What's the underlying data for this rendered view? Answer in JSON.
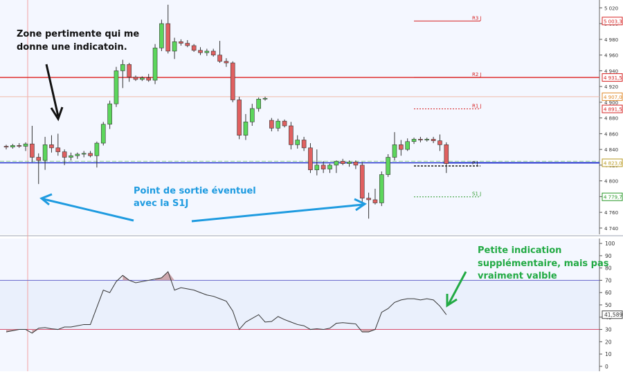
{
  "chart_data": [
    {
      "type": "candlestick",
      "y_axis": {
        "range": [
          4732,
          5030
        ],
        "ticks": [
          "5 020",
          "5 000",
          "4 980",
          "4 960",
          "4 940",
          "4 920",
          "4 900",
          "4 880",
          "4 860",
          "4 840",
          "4 820",
          "4 800",
          "4 780",
          "4 760",
          "4 740"
        ]
      },
      "candles": [
        {
          "o": 4844,
          "h": 4846,
          "l": 4840,
          "c": 4843
        },
        {
          "o": 4843,
          "h": 4847,
          "l": 4841,
          "c": 4845
        },
        {
          "o": 4845,
          "h": 4848,
          "l": 4842,
          "c": 4844
        },
        {
          "o": 4844,
          "h": 4849,
          "l": 4838,
          "c": 4847
        },
        {
          "o": 4847,
          "h": 4870,
          "l": 4824,
          "c": 4830
        },
        {
          "o": 4830,
          "h": 4835,
          "l": 4796,
          "c": 4826
        },
        {
          "o": 4826,
          "h": 4856,
          "l": 4814,
          "c": 4846
        },
        {
          "o": 4846,
          "h": 4858,
          "l": 4836,
          "c": 4842
        },
        {
          "o": 4842,
          "h": 4860,
          "l": 4832,
          "c": 4837
        },
        {
          "o": 4837,
          "h": 4840,
          "l": 4820,
          "c": 4830
        },
        {
          "o": 4830,
          "h": 4836,
          "l": 4826,
          "c": 4832
        },
        {
          "o": 4832,
          "h": 4836,
          "l": 4828,
          "c": 4834
        },
        {
          "o": 4834,
          "h": 4838,
          "l": 4830,
          "c": 4835
        },
        {
          "o": 4835,
          "h": 4838,
          "l": 4830,
          "c": 4832
        },
        {
          "o": 4832,
          "h": 4850,
          "l": 4817,
          "c": 4848
        },
        {
          "o": 4848,
          "h": 4875,
          "l": 4845,
          "c": 4872
        },
        {
          "o": 4872,
          "h": 4902,
          "l": 4866,
          "c": 4898
        },
        {
          "o": 4898,
          "h": 4945,
          "l": 4894,
          "c": 4940
        },
        {
          "o": 4940,
          "h": 4954,
          "l": 4918,
          "c": 4948
        },
        {
          "o": 4948,
          "h": 4950,
          "l": 4926,
          "c": 4932
        },
        {
          "o": 4932,
          "h": 4934,
          "l": 4927,
          "c": 4929
        },
        {
          "o": 4929,
          "h": 4933,
          "l": 4927,
          "c": 4931
        },
        {
          "o": 4931,
          "h": 4936,
          "l": 4926,
          "c": 4928
        },
        {
          "o": 4928,
          "h": 4974,
          "l": 4923,
          "c": 4969
        },
        {
          "o": 4969,
          "h": 5005,
          "l": 4965,
          "c": 5000
        },
        {
          "o": 5000,
          "h": 5024,
          "l": 4962,
          "c": 4965
        },
        {
          "o": 4965,
          "h": 4982,
          "l": 4955,
          "c": 4977
        },
        {
          "o": 4977,
          "h": 4980,
          "l": 4972,
          "c": 4975
        },
        {
          "o": 4975,
          "h": 4979,
          "l": 4970,
          "c": 4972
        },
        {
          "o": 4972,
          "h": 4974,
          "l": 4964,
          "c": 4966
        },
        {
          "o": 4966,
          "h": 4970,
          "l": 4960,
          "c": 4963
        },
        {
          "o": 4963,
          "h": 4968,
          "l": 4959,
          "c": 4965
        },
        {
          "o": 4965,
          "h": 4968,
          "l": 4958,
          "c": 4960
        },
        {
          "o": 4960,
          "h": 4978,
          "l": 4950,
          "c": 4952
        },
        {
          "o": 4952,
          "h": 4956,
          "l": 4945,
          "c": 4950
        },
        {
          "o": 4950,
          "h": 4952,
          "l": 4900,
          "c": 4903
        },
        {
          "o": 4903,
          "h": 4907,
          "l": 4853,
          "c": 4858
        },
        {
          "o": 4858,
          "h": 4885,
          "l": 4852,
          "c": 4875
        },
        {
          "o": 4875,
          "h": 4898,
          "l": 4870,
          "c": 4892
        },
        {
          "o": 4892,
          "h": 4906,
          "l": 4888,
          "c": 4904
        },
        {
          "o": 4904,
          "h": 4907,
          "l": 4902,
          "c": 4905
        },
        {
          "o": 4877,
          "h": 4880,
          "l": 4863,
          "c": 4867
        },
        {
          "o": 4867,
          "h": 4879,
          "l": 4863,
          "c": 4876
        },
        {
          "o": 4876,
          "h": 4878,
          "l": 4868,
          "c": 4870
        },
        {
          "o": 4870,
          "h": 4875,
          "l": 4840,
          "c": 4846
        },
        {
          "o": 4846,
          "h": 4858,
          "l": 4841,
          "c": 4852
        },
        {
          "o": 4852,
          "h": 4856,
          "l": 4838,
          "c": 4842
        },
        {
          "o": 4842,
          "h": 4848,
          "l": 4810,
          "c": 4814
        },
        {
          "o": 4814,
          "h": 4840,
          "l": 4807,
          "c": 4820
        },
        {
          "o": 4820,
          "h": 4825,
          "l": 4810,
          "c": 4815
        },
        {
          "o": 4815,
          "h": 4822,
          "l": 4810,
          "c": 4820
        },
        {
          "o": 4820,
          "h": 4826,
          "l": 4810,
          "c": 4825
        },
        {
          "o": 4825,
          "h": 4828,
          "l": 4820,
          "c": 4822
        },
        {
          "o": 4822,
          "h": 4826,
          "l": 4818,
          "c": 4824
        },
        {
          "o": 4824,
          "h": 4826,
          "l": 4815,
          "c": 4820
        },
        {
          "o": 4820,
          "h": 4824,
          "l": 4773,
          "c": 4778
        },
        {
          "o": 4778,
          "h": 4785,
          "l": 4752,
          "c": 4776
        },
        {
          "o": 4776,
          "h": 4790,
          "l": 4770,
          "c": 4772
        },
        {
          "o": 4772,
          "h": 4812,
          "l": 4768,
          "c": 4808
        },
        {
          "o": 4808,
          "h": 4834,
          "l": 4805,
          "c": 4830
        },
        {
          "o": 4830,
          "h": 4862,
          "l": 4826,
          "c": 4846
        },
        {
          "o": 4846,
          "h": 4852,
          "l": 4832,
          "c": 4840
        },
        {
          "o": 4840,
          "h": 4854,
          "l": 4838,
          "c": 4850
        },
        {
          "o": 4850,
          "h": 4855,
          "l": 4847,
          "c": 4853
        },
        {
          "o": 4853,
          "h": 4856,
          "l": 4849,
          "c": 4852
        },
        {
          "o": 4852,
          "h": 4855,
          "l": 4850,
          "c": 4853
        },
        {
          "o": 4853,
          "h": 4856,
          "l": 4848,
          "c": 4851
        },
        {
          "o": 4851,
          "h": 4859,
          "l": 4838,
          "c": 4846
        },
        {
          "o": 4846,
          "h": 4849,
          "l": 4810,
          "c": 4822
        }
      ],
      "pivot_levels": [
        {
          "label": "R3 J",
          "value": 5003.3,
          "color": "#d62020"
        },
        {
          "label": "R2 J",
          "value": 4931.5,
          "color": "#d62020"
        },
        {
          "label": "R1 J",
          "value": 4891.5,
          "color": "#d62020"
        },
        {
          "label": "P J",
          "value": 4819,
          "color": "#222222"
        },
        {
          "label": "S1 J",
          "value": 4779.7,
          "color": "#2a9a2a"
        }
      ],
      "price_tags": [
        {
          "text": "5 003,3",
          "value": 5003.3,
          "color": "#d62020"
        },
        {
          "text": "4 931,5",
          "value": 4931.5,
          "color": "#d62020"
        },
        {
          "text": "4 907,0",
          "value": 4907,
          "color": "#e08a2a"
        },
        {
          "text": "4 891,5",
          "value": 4891.5,
          "color": "#d62020"
        },
        {
          "text": "4 823,0",
          "value": 4823,
          "color": "#b89a20"
        },
        {
          "text": "4 779,7",
          "value": 4779.7,
          "color": "#2a9a2a"
        }
      ],
      "horizontal_lines": [
        {
          "value": 4931.5,
          "color": "#e03030"
        },
        {
          "value": 4907,
          "color": "#f0b9a8"
        },
        {
          "value": 4825,
          "color": "#8fd08f"
        },
        {
          "value": 4823,
          "color": "#2233cc"
        }
      ]
    },
    {
      "type": "line",
      "y_axis": {
        "range": [
          -4,
          104
        ],
        "ticks": [
          "100",
          "90",
          "80",
          "70",
          "60",
          "50",
          "40",
          "30",
          "20",
          "10",
          "0"
        ]
      },
      "overbought": 70,
      "oversold": 30,
      "value_tag": "41,589",
      "values": [
        28,
        29,
        30,
        30,
        27,
        31,
        31.5,
        30.5,
        30,
        32,
        32,
        33,
        34,
        34,
        48,
        62,
        60,
        69,
        74,
        70,
        68,
        69,
        70,
        71,
        72,
        77,
        62,
        64,
        63,
        62,
        60,
        58,
        57,
        55,
        53,
        45,
        30,
        36,
        39,
        42,
        36,
        36.5,
        40.5,
        38,
        36,
        34,
        33,
        30,
        30.5,
        30,
        31,
        35,
        35.5,
        35,
        34.5,
        28,
        28,
        30,
        44,
        47,
        52,
        54,
        55,
        55,
        54,
        55,
        54,
        49,
        42
      ]
    }
  ],
  "annotations": {
    "top_left": [
      "Zone pertimente qui me",
      "donne une indicatoin."
    ],
    "bottom_center": [
      "Point de sortie éventuel",
      "avec la S1J"
    ],
    "lower_right": [
      "Petite indication",
      "supplémentaire, mais pas",
      "vraiment valble"
    ]
  },
  "colors": {
    "bull": "#5cd65c",
    "bear": "#e06060",
    "annotation_blue": "#1e9be0",
    "annotation_green": "#22aa44",
    "rsi_fill": "#c79aa0"
  }
}
